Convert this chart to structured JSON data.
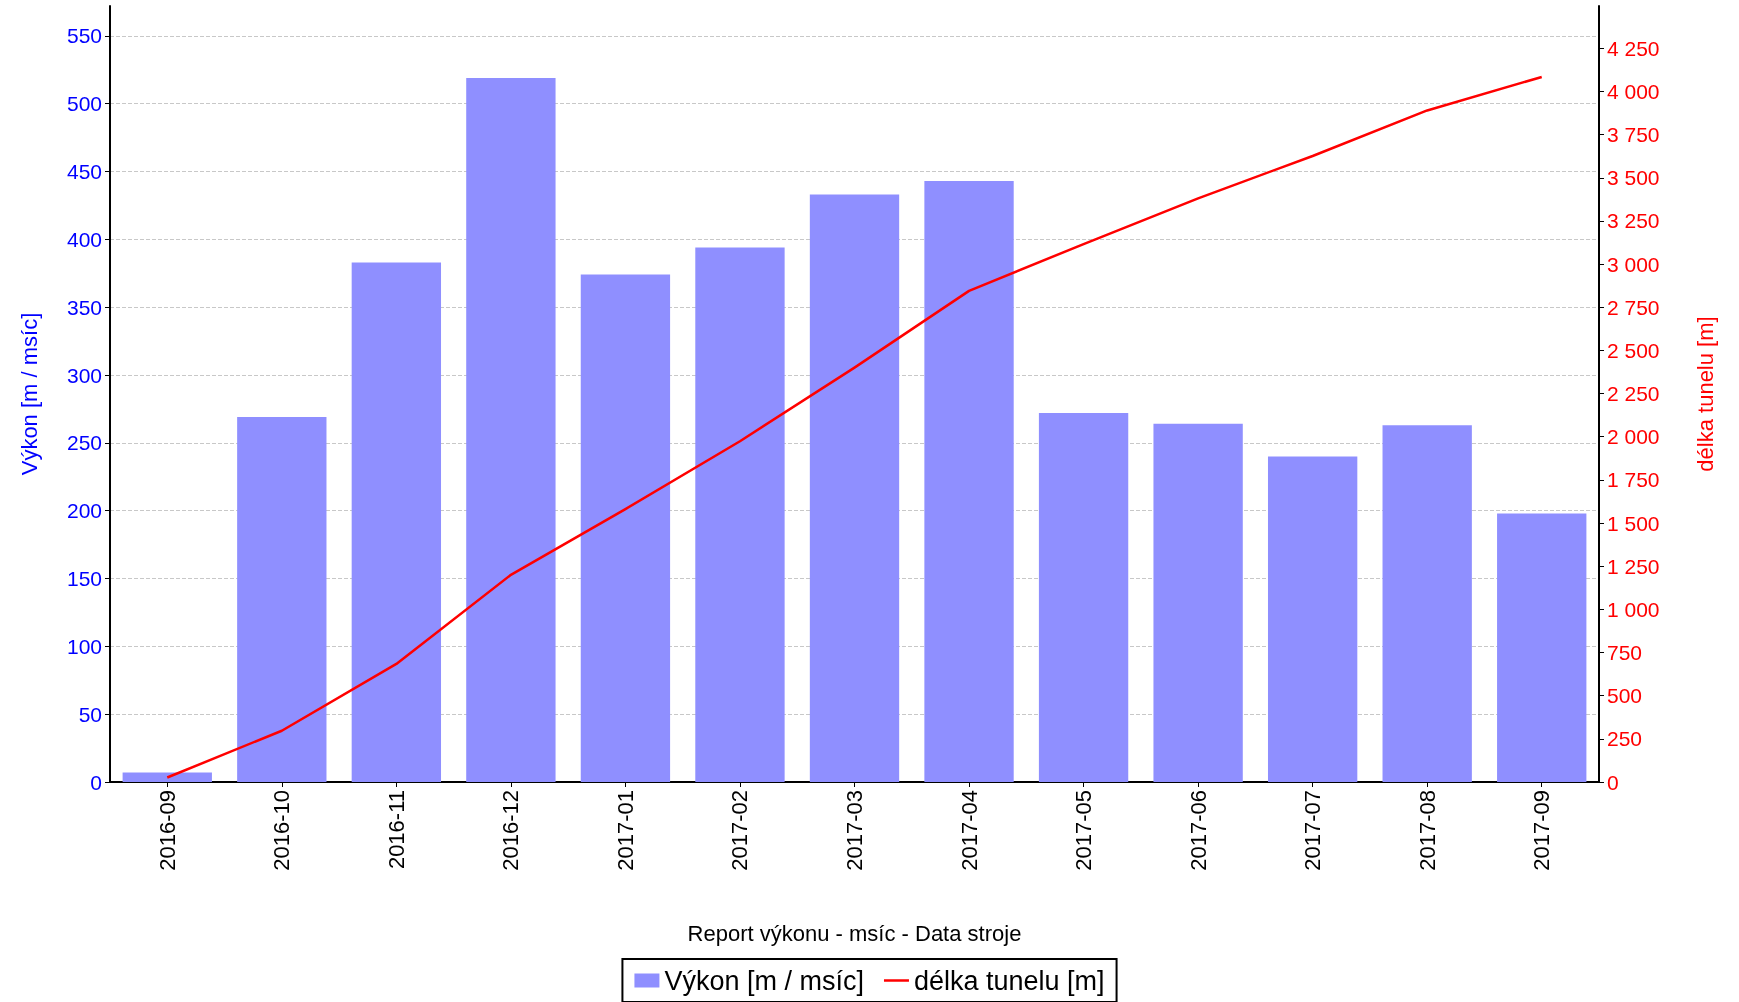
{
  "chart_data": {
    "type": "bar",
    "xlabel": "Report výkonu - msíc - Data stroje",
    "ylabel": "Výkon [m / msíc]",
    "y2label": "délka tunelu [m]",
    "categories": [
      "2016-09",
      "2016-10",
      "2016-11",
      "2016-12",
      "2017-01",
      "2017-02",
      "2017-03",
      "2017-04",
      "2017-05",
      "2017-06",
      "2017-07",
      "2017-08",
      "2017-09"
    ],
    "series": [
      {
        "name": "Výkon [m / msíc]",
        "color": "#8f8fff",
        "values": [
          7,
          269,
          383,
          519,
          374,
          394,
          433,
          443,
          272,
          264,
          240,
          263,
          198
        ]
      },
      {
        "name": "délka tunelu [m]",
        "type": "line",
        "axis": "y2",
        "color": "#ff0000",
        "values": [
          26,
          297,
          684,
          1200,
          1581,
          1974,
          2400,
          2845,
          3116,
          3381,
          3626,
          3890,
          4084
        ]
      }
    ],
    "ylim": [
      0,
      572
    ],
    "yticks": [
      0,
      50,
      100,
      150,
      200,
      250,
      300,
      350,
      400,
      450,
      500,
      550
    ],
    "y2lim": [
      0,
      4495
    ],
    "y2ticks": [
      0,
      250,
      500,
      750,
      {
        "value": 1000,
        "label": "1 000"
      },
      {
        "value": 1250,
        "label": "1 250"
      },
      {
        "value": 1500,
        "label": "1 500"
      },
      {
        "value": 1750,
        "label": "1 750"
      },
      {
        "value": 2000,
        "label": "2 000"
      },
      {
        "value": 2250,
        "label": "2 250"
      },
      {
        "value": 2500,
        "label": "2 500"
      },
      {
        "value": 2750,
        "label": "2 750"
      },
      {
        "value": 3000,
        "label": "3 000"
      },
      {
        "value": 3250,
        "label": "3 250"
      },
      {
        "value": 3500,
        "label": "3 500"
      },
      {
        "value": 3750,
        "label": "3 750"
      },
      {
        "value": 4000,
        "label": "4 000"
      },
      {
        "value": 4250,
        "label": "4 250"
      }
    ],
    "grid": "y",
    "legend": "bottom",
    "marker": "none",
    "line_style": "solid"
  }
}
